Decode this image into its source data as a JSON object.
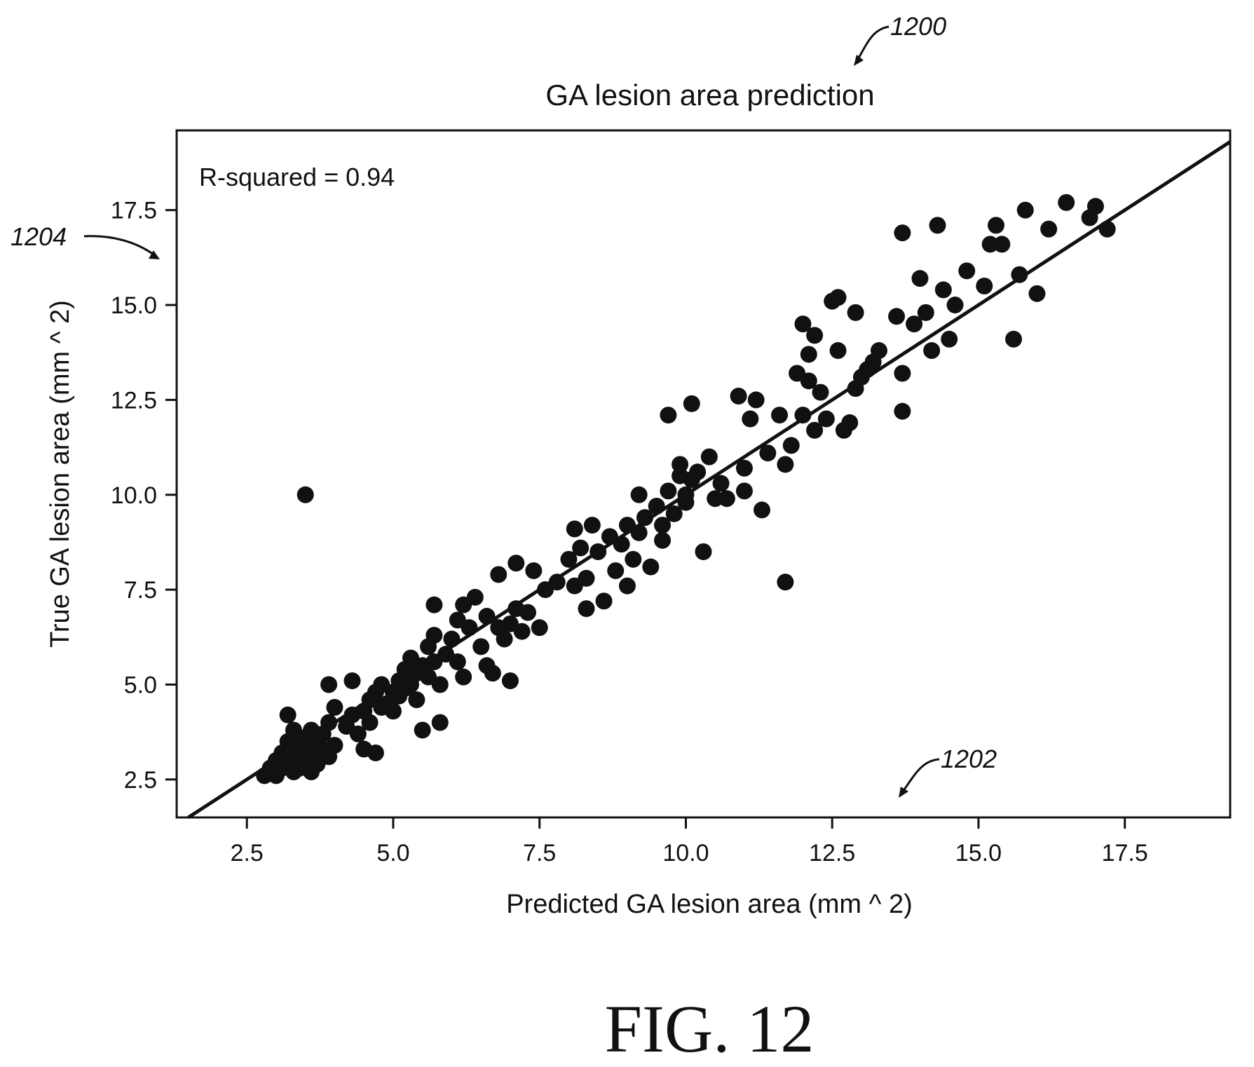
{
  "figure": {
    "caption": "FIG. 12",
    "reference_numerals": {
      "figure": "1200",
      "x_axis": "1202",
      "y_axis": "1204"
    }
  },
  "colors": {
    "ink": "#111111",
    "background": "#ffffff"
  },
  "chart_data": {
    "type": "scatter",
    "title": "GA lesion area prediction",
    "xlabel": "Predicted GA lesion area (mm ^ 2)",
    "ylabel": "True GA lesion area (mm ^ 2)",
    "xlim": [
      1.3,
      19.3
    ],
    "ylim": [
      1.5,
      19.6
    ],
    "xticks": [
      2.5,
      5.0,
      7.5,
      10.0,
      12.5,
      15.0,
      17.5
    ],
    "yticks": [
      2.5,
      5.0,
      7.5,
      10.0,
      12.5,
      15.0,
      17.5
    ],
    "grid": false,
    "legend": "none",
    "annotation": "R-squared = 0.94",
    "regression_line": {
      "slope": 1.0,
      "intercept": 0.0
    },
    "points": [
      [
        2.8,
        2.6
      ],
      [
        2.9,
        2.8
      ],
      [
        3.0,
        3.0
      ],
      [
        3.0,
        2.6
      ],
      [
        3.1,
        3.2
      ],
      [
        3.1,
        2.8
      ],
      [
        3.2,
        3.5
      ],
      [
        3.2,
        3.0
      ],
      [
        3.3,
        3.3
      ],
      [
        3.3,
        2.7
      ],
      [
        3.4,
        3.6
      ],
      [
        3.4,
        3.1
      ],
      [
        3.4,
        2.8
      ],
      [
        3.5,
        3.4
      ],
      [
        3.5,
        3.0
      ],
      [
        3.6,
        3.8
      ],
      [
        3.6,
        3.2
      ],
      [
        3.7,
        3.5
      ],
      [
        3.7,
        2.9
      ],
      [
        3.8,
        3.7
      ],
      [
        3.8,
        3.3
      ],
      [
        3.9,
        4.0
      ],
      [
        3.9,
        3.1
      ],
      [
        3.2,
        4.2
      ],
      [
        3.3,
        3.8
      ],
      [
        3.6,
        2.7
      ],
      [
        4.0,
        3.4
      ],
      [
        4.0,
        4.4
      ],
      [
        3.9,
        5.0
      ],
      [
        4.2,
        3.9
      ],
      [
        4.3,
        4.2
      ],
      [
        4.3,
        5.1
      ],
      [
        4.4,
        3.7
      ],
      [
        4.5,
        4.3
      ],
      [
        4.5,
        3.3
      ],
      [
        4.6,
        4.6
      ],
      [
        4.6,
        4.0
      ],
      [
        4.7,
        4.8
      ],
      [
        4.7,
        3.2
      ],
      [
        4.8,
        4.4
      ],
      [
        4.8,
        5.0
      ],
      [
        4.9,
        4.5
      ],
      [
        5.0,
        4.8
      ],
      [
        5.0,
        4.3
      ],
      [
        5.1,
        5.1
      ],
      [
        5.1,
        4.7
      ],
      [
        5.2,
        5.4
      ],
      [
        5.2,
        4.9
      ],
      [
        5.3,
        5.0
      ],
      [
        5.3,
        5.7
      ],
      [
        5.4,
        5.3
      ],
      [
        5.4,
        4.6
      ],
      [
        5.5,
        5.5
      ],
      [
        5.5,
        3.8
      ],
      [
        5.6,
        5.2
      ],
      [
        5.6,
        6.0
      ],
      [
        5.7,
        5.6
      ],
      [
        5.7,
        6.3
      ],
      [
        5.8,
        4.0
      ],
      [
        5.7,
        7.1
      ],
      [
        5.8,
        5.0
      ],
      [
        5.9,
        5.8
      ],
      [
        6.0,
        6.2
      ],
      [
        6.1,
        5.6
      ],
      [
        6.1,
        6.7
      ],
      [
        6.2,
        5.2
      ],
      [
        6.2,
        7.1
      ],
      [
        6.3,
        6.5
      ],
      [
        6.4,
        7.3
      ],
      [
        6.5,
        6.0
      ],
      [
        6.6,
        5.5
      ],
      [
        6.6,
        6.8
      ],
      [
        6.7,
        5.3
      ],
      [
        6.8,
        6.5
      ],
      [
        6.8,
        7.9
      ],
      [
        6.9,
        6.2
      ],
      [
        7.0,
        6.6
      ],
      [
        7.0,
        5.1
      ],
      [
        7.1,
        7.0
      ],
      [
        7.1,
        8.2
      ],
      [
        7.2,
        6.4
      ],
      [
        7.3,
        6.9
      ],
      [
        7.4,
        8.0
      ],
      [
        7.5,
        6.5
      ],
      [
        7.6,
        7.5
      ],
      [
        7.8,
        7.7
      ],
      [
        8.0,
        8.3
      ],
      [
        8.1,
        7.6
      ],
      [
        8.1,
        9.1
      ],
      [
        8.2,
        8.6
      ],
      [
        8.3,
        7.8
      ],
      [
        8.3,
        7.0
      ],
      [
        8.4,
        9.2
      ],
      [
        8.5,
        8.5
      ],
      [
        8.6,
        7.2
      ],
      [
        8.7,
        8.9
      ],
      [
        8.8,
        8.0
      ],
      [
        8.9,
        8.7
      ],
      [
        9.0,
        7.6
      ],
      [
        9.0,
        9.2
      ],
      [
        9.1,
        8.3
      ],
      [
        9.2,
        10.0
      ],
      [
        9.2,
        9.0
      ],
      [
        9.3,
        9.4
      ],
      [
        9.4,
        8.1
      ],
      [
        9.5,
        9.7
      ],
      [
        9.6,
        9.2
      ],
      [
        9.6,
        8.8
      ],
      [
        9.7,
        10.1
      ],
      [
        9.7,
        12.1
      ],
      [
        9.8,
        9.5
      ],
      [
        9.9,
        10.5
      ],
      [
        9.9,
        10.8
      ],
      [
        10.0,
        10.0
      ],
      [
        10.0,
        9.8
      ],
      [
        10.1,
        10.4
      ],
      [
        10.1,
        12.4
      ],
      [
        10.2,
        10.6
      ],
      [
        10.3,
        8.5
      ],
      [
        10.4,
        11.0
      ],
      [
        10.5,
        9.9
      ],
      [
        10.6,
        10.3
      ],
      [
        10.7,
        9.9
      ],
      [
        10.9,
        12.6
      ],
      [
        11.0,
        10.7
      ],
      [
        11.0,
        10.1
      ],
      [
        11.1,
        12.0
      ],
      [
        11.2,
        12.5
      ],
      [
        11.3,
        9.6
      ],
      [
        11.4,
        11.1
      ],
      [
        11.6,
        12.1
      ],
      [
        11.7,
        10.8
      ],
      [
        11.7,
        7.7
      ],
      [
        11.8,
        11.3
      ],
      [
        11.9,
        13.2
      ],
      [
        12.0,
        12.1
      ],
      [
        12.0,
        14.5
      ],
      [
        12.1,
        13.7
      ],
      [
        12.1,
        13.0
      ],
      [
        12.2,
        11.7
      ],
      [
        12.2,
        14.2
      ],
      [
        12.3,
        12.7
      ],
      [
        12.4,
        12.0
      ],
      [
        12.5,
        15.1
      ],
      [
        12.6,
        15.2
      ],
      [
        12.6,
        13.8
      ],
      [
        12.7,
        11.7
      ],
      [
        12.8,
        11.9
      ],
      [
        12.9,
        14.8
      ],
      [
        12.9,
        12.8
      ],
      [
        13.0,
        13.1
      ],
      [
        13.1,
        13.3
      ],
      [
        13.2,
        13.5
      ],
      [
        13.3,
        13.8
      ],
      [
        13.6,
        14.7
      ],
      [
        13.7,
        13.2
      ],
      [
        13.7,
        12.2
      ],
      [
        13.7,
        16.9
      ],
      [
        13.9,
        14.5
      ],
      [
        14.0,
        15.7
      ],
      [
        14.1,
        14.8
      ],
      [
        14.2,
        13.8
      ],
      [
        14.3,
        17.1
      ],
      [
        14.4,
        15.4
      ],
      [
        14.5,
        14.1
      ],
      [
        14.6,
        15.0
      ],
      [
        14.8,
        15.9
      ],
      [
        15.1,
        15.5
      ],
      [
        15.2,
        16.6
      ],
      [
        15.3,
        17.1
      ],
      [
        15.4,
        16.6
      ],
      [
        15.6,
        14.1
      ],
      [
        15.7,
        15.8
      ],
      [
        15.8,
        17.5
      ],
      [
        16.0,
        15.3
      ],
      [
        16.2,
        17.0
      ],
      [
        16.5,
        17.7
      ],
      [
        16.9,
        17.3
      ],
      [
        17.0,
        17.6
      ],
      [
        17.2,
        17.0
      ],
      [
        3.5,
        10.0
      ]
    ]
  }
}
